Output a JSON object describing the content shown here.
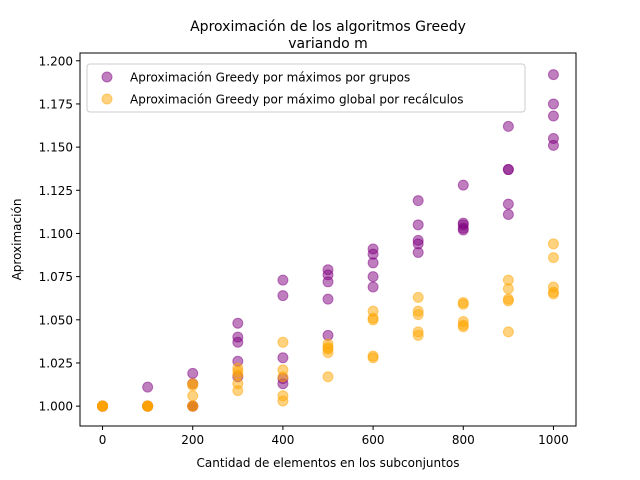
{
  "chart_data": {
    "type": "scatter",
    "title_line1": "Aproximación de los algoritmos Greedy",
    "title_line2": "variando m",
    "xlabel": "Cantidad de elementos en los subconjuntos",
    "ylabel": "Aproximación",
    "xlim": [
      -50,
      1050
    ],
    "ylim": [
      0.9885,
      1.2045
    ],
    "xticks": [
      0,
      200,
      400,
      600,
      800,
      1000
    ],
    "yticks": [
      1.0,
      1.025,
      1.05,
      1.075,
      1.1,
      1.125,
      1.15,
      1.175,
      1.2
    ],
    "ytick_labels": [
      "1.000",
      "1.025",
      "1.050",
      "1.075",
      "1.100",
      "1.125",
      "1.150",
      "1.175",
      "1.200"
    ],
    "legend_position": "top-left",
    "series": [
      {
        "name": "Aproximación Greedy por máximos por grupos",
        "color": "#800080",
        "points": [
          [
            0,
            1.0
          ],
          [
            0,
            1.0
          ],
          [
            0,
            1.0
          ],
          [
            0,
            1.0
          ],
          [
            0,
            1.0
          ],
          [
            0,
            1.0
          ],
          [
            100,
            1.011
          ],
          [
            100,
            1.0
          ],
          [
            100,
            1.0
          ],
          [
            100,
            1.0
          ],
          [
            100,
            1.0
          ],
          [
            200,
            1.019
          ],
          [
            200,
            1.013
          ],
          [
            200,
            1.0
          ],
          [
            200,
            1.0
          ],
          [
            200,
            1.0
          ],
          [
            300,
            1.048
          ],
          [
            300,
            1.04
          ],
          [
            300,
            1.037
          ],
          [
            300,
            1.026
          ],
          [
            300,
            1.017
          ],
          [
            400,
            1.073
          ],
          [
            400,
            1.064
          ],
          [
            400,
            1.028
          ],
          [
            400,
            1.016
          ],
          [
            400,
            1.013
          ],
          [
            500,
            1.079
          ],
          [
            500,
            1.076
          ],
          [
            500,
            1.072
          ],
          [
            500,
            1.062
          ],
          [
            500,
            1.041
          ],
          [
            600,
            1.091
          ],
          [
            600,
            1.088
          ],
          [
            600,
            1.083
          ],
          [
            600,
            1.075
          ],
          [
            600,
            1.069
          ],
          [
            700,
            1.119
          ],
          [
            700,
            1.105
          ],
          [
            700,
            1.096
          ],
          [
            700,
            1.094
          ],
          [
            700,
            1.089
          ],
          [
            800,
            1.128
          ],
          [
            800,
            1.106
          ],
          [
            800,
            1.105
          ],
          [
            800,
            1.103
          ],
          [
            800,
            1.102
          ],
          [
            900,
            1.162
          ],
          [
            900,
            1.137
          ],
          [
            900,
            1.137
          ],
          [
            900,
            1.117
          ],
          [
            900,
            1.111
          ],
          [
            1000,
            1.192
          ],
          [
            1000,
            1.175
          ],
          [
            1000,
            1.168
          ],
          [
            1000,
            1.155
          ],
          [
            1000,
            1.151
          ]
        ]
      },
      {
        "name": "Aproximación Greedy por máximo global por recálculos",
        "color": "#FFA500",
        "points": [
          [
            0,
            1.0
          ],
          [
            0,
            1.0
          ],
          [
            0,
            1.0
          ],
          [
            0,
            1.0
          ],
          [
            0,
            1.0
          ],
          [
            0,
            1.0
          ],
          [
            100,
            1.0
          ],
          [
            100,
            1.0
          ],
          [
            100,
            1.0
          ],
          [
            100,
            1.0
          ],
          [
            100,
            1.0
          ],
          [
            200,
            1.013
          ],
          [
            200,
            1.012
          ],
          [
            200,
            1.006
          ],
          [
            200,
            1.0
          ],
          [
            200,
            1.0
          ],
          [
            300,
            1.022
          ],
          [
            300,
            1.02
          ],
          [
            300,
            1.018
          ],
          [
            300,
            1.013
          ],
          [
            300,
            1.009
          ],
          [
            400,
            1.037
          ],
          [
            400,
            1.021
          ],
          [
            400,
            1.017
          ],
          [
            400,
            1.006
          ],
          [
            400,
            1.003
          ],
          [
            500,
            1.036
          ],
          [
            500,
            1.034
          ],
          [
            500,
            1.033
          ],
          [
            500,
            1.031
          ],
          [
            500,
            1.017
          ],
          [
            600,
            1.055
          ],
          [
            600,
            1.051
          ],
          [
            600,
            1.05
          ],
          [
            600,
            1.029
          ],
          [
            600,
            1.028
          ],
          [
            700,
            1.063
          ],
          [
            700,
            1.055
          ],
          [
            700,
            1.053
          ],
          [
            700,
            1.043
          ],
          [
            700,
            1.041
          ],
          [
            800,
            1.06
          ],
          [
            800,
            1.059
          ],
          [
            800,
            1.049
          ],
          [
            800,
            1.047
          ],
          [
            800,
            1.046
          ],
          [
            900,
            1.073
          ],
          [
            900,
            1.068
          ],
          [
            900,
            1.062
          ],
          [
            900,
            1.061
          ],
          [
            900,
            1.043
          ],
          [
            1000,
            1.094
          ],
          [
            1000,
            1.086
          ],
          [
            1000,
            1.069
          ],
          [
            1000,
            1.066
          ],
          [
            1000,
            1.065
          ]
        ]
      }
    ]
  }
}
